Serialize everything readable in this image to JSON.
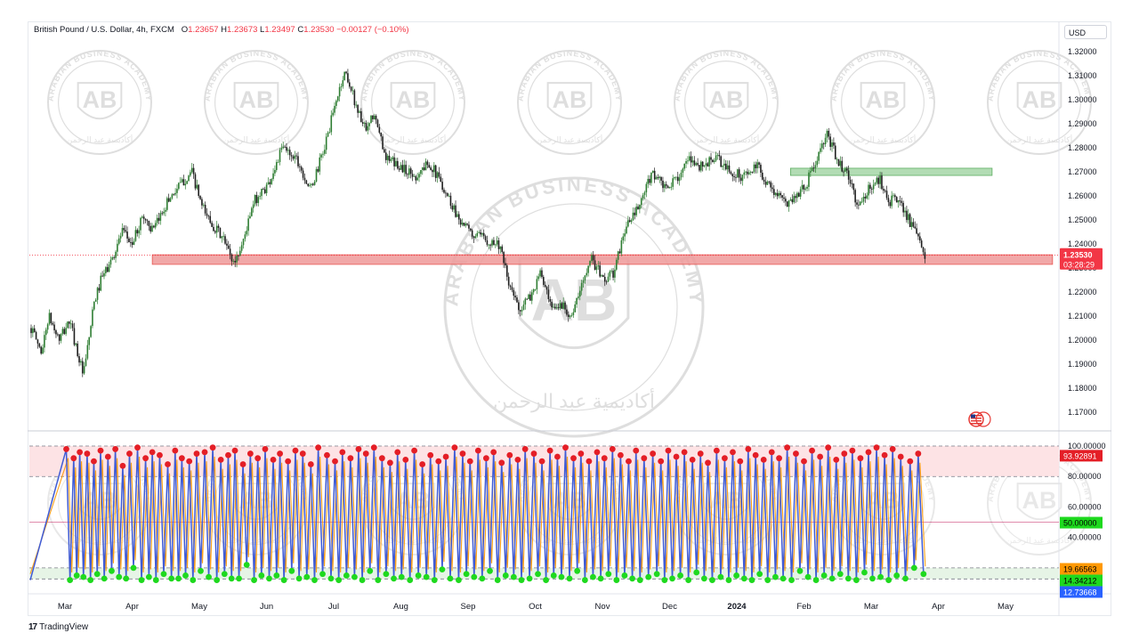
{
  "legend": {
    "symbol": "British Pound / U.S. Dollar, 4h, FXCM",
    "open_label": "O",
    "open": "1.23657",
    "high_label": "H",
    "high": "1.23673",
    "low_label": "L",
    "low": "1.23497",
    "close_label": "C",
    "close": "1.23530",
    "change": "−0.00127 (−0.10%)"
  },
  "currency": "USD",
  "price_badge": {
    "price": "1.23530",
    "countdown": "03:28:29",
    "color": "#f23645"
  },
  "indicator_badges": [
    "93.92891",
    "50.00000",
    "19.66563",
    "14.34212",
    "12.73668"
  ],
  "footer": {
    "logo_mark": "17",
    "logo_text": "TradingView"
  },
  "watermark": {
    "monogram": "AB",
    "arc_text": "ARABIAN BUSINESS ACADEMY",
    "arabic_text": "أكاديمية عبد الرحمن"
  },
  "colors": {
    "bull": "#26a69a",
    "bear": "#1f1f1f",
    "up_candle_body": "#2e7d32",
    "resistance_zone": "#a5d6a7",
    "support_zone": "#ef9a9a",
    "osc_line": "#3f5bd5",
    "osc_signal": "#ff9800",
    "overbought_fill": "#fde3e5",
    "oversold_fill": "#e6f4e6",
    "dot_high": "#e41e26",
    "dot_low": "#1ed91e"
  },
  "chart_data": [
    {
      "type": "candlestick",
      "title": "British Pound / U.S. Dollar, 4h, FXCM",
      "x_ticks": [
        "Mar",
        "Apr",
        "May",
        "Jun",
        "Jul",
        "Aug",
        "Sep",
        "Oct",
        "Nov",
        "Dec",
        "2024",
        "Feb",
        "Mar",
        "Apr",
        "May"
      ],
      "y_ticks": [
        "1.32000",
        "1.31000",
        "1.30000",
        "1.29000",
        "1.28000",
        "1.27000",
        "1.26000",
        "1.25000",
        "1.24000",
        "1.23000",
        "1.22000",
        "1.21000",
        "1.20000",
        "1.19000",
        "1.18000",
        "1.17000"
      ],
      "ylim": [
        1.1655,
        1.3228
      ],
      "close_path": {
        "months": [
          0.0,
          0.15,
          0.25,
          0.4,
          0.55,
          0.75,
          0.9,
          1.0,
          1.15,
          1.3,
          1.45,
          1.6,
          1.75,
          1.9,
          2.0,
          2.15,
          2.3,
          2.45,
          2.6,
          2.75,
          2.9,
          3.0,
          3.2,
          3.4,
          3.6,
          3.8,
          4.0,
          4.2,
          4.4,
          4.5,
          4.65,
          4.8,
          4.9,
          5.1,
          5.3,
          5.5,
          5.7,
          5.9,
          6.1,
          6.3,
          6.5,
          6.7,
          6.85,
          7.0,
          7.15,
          7.3,
          7.45,
          7.6,
          7.75,
          7.9,
          8.0,
          8.2,
          8.35,
          8.5,
          8.7,
          8.9,
          9.1,
          9.3,
          9.45,
          9.6,
          9.8,
          10.0,
          10.2,
          10.4,
          10.6,
          10.8,
          10.95,
          11.1,
          11.25,
          11.4,
          11.55,
          11.7,
          11.85,
          12.0,
          12.15,
          12.3,
          12.45,
          12.6,
          12.7,
          12.8
        ],
        "prices": [
          1.205,
          1.195,
          1.21,
          1.2,
          1.208,
          1.185,
          1.215,
          1.225,
          1.233,
          1.245,
          1.24,
          1.252,
          1.245,
          1.255,
          1.26,
          1.265,
          1.27,
          1.255,
          1.248,
          1.242,
          1.232,
          1.238,
          1.258,
          1.265,
          1.28,
          1.276,
          1.262,
          1.28,
          1.303,
          1.312,
          1.298,
          1.286,
          1.294,
          1.275,
          1.272,
          1.268,
          1.274,
          1.264,
          1.252,
          1.244,
          1.242,
          1.24,
          1.222,
          1.213,
          1.218,
          1.228,
          1.212,
          1.215,
          1.21,
          1.224,
          1.235,
          1.225,
          1.228,
          1.246,
          1.255,
          1.27,
          1.262,
          1.27,
          1.275,
          1.272,
          1.276,
          1.27,
          1.268,
          1.272,
          1.263,
          1.257,
          1.26,
          1.265,
          1.275,
          1.285,
          1.275,
          1.268,
          1.255,
          1.263,
          1.267,
          1.258,
          1.258,
          1.248,
          1.242,
          1.2353
        ]
      },
      "zones": [
        {
          "label": "resistance",
          "from_month": 10.8,
          "to_month": 13.8,
          "low": 1.2685,
          "high": 1.2715
        },
        {
          "label": "support",
          "from_month": 1.3,
          "to_month": 14.7,
          "low": 1.2315,
          "high": 1.2355
        }
      ],
      "last_price": 1.2353
    },
    {
      "type": "line",
      "y_ticks": [
        "100.00000",
        "80.00000",
        "60.00000",
        "40.00000"
      ],
      "ylim": [
        10,
        103
      ],
      "levels": [
        100,
        80,
        50,
        20,
        12.73668
      ],
      "cycles": [
        [
          0.02,
          98,
          12
        ],
        [
          0.13,
          92,
          15
        ],
        [
          0.22,
          96,
          14
        ],
        [
          0.33,
          95,
          12
        ],
        [
          0.43,
          90,
          16
        ],
        [
          0.53,
          97,
          13
        ],
        [
          0.64,
          93,
          18
        ],
        [
          0.75,
          98,
          14
        ],
        [
          0.86,
          87,
          13
        ],
        [
          0.96,
          95,
          20
        ],
        [
          1.08,
          99,
          12
        ],
        [
          1.2,
          92,
          14
        ],
        [
          1.3,
          96,
          12
        ],
        [
          1.41,
          94,
          16
        ],
        [
          1.53,
          88,
          13
        ],
        [
          1.64,
          97,
          13
        ],
        [
          1.74,
          92,
          15
        ],
        [
          1.85,
          90,
          12
        ],
        [
          1.96,
          95,
          18
        ],
        [
          2.08,
          96,
          14
        ],
        [
          2.2,
          99,
          12
        ],
        [
          2.32,
          91,
          16
        ],
        [
          2.43,
          94,
          13
        ],
        [
          2.53,
          97,
          13
        ],
        [
          2.65,
          88,
          22
        ],
        [
          2.76,
          95,
          12
        ],
        [
          2.87,
          92,
          15
        ],
        [
          2.98,
          98,
          13
        ],
        [
          3.1,
          91,
          15
        ],
        [
          3.2,
          95,
          12
        ],
        [
          3.32,
          90,
          18
        ],
        [
          3.43,
          97,
          13
        ],
        [
          3.54,
          95,
          14
        ],
        [
          3.66,
          88,
          12
        ],
        [
          3.77,
          99,
          16
        ],
        [
          3.9,
          94,
          13
        ],
        [
          4.02,
          90,
          12
        ],
        [
          4.13,
          96,
          15
        ],
        [
          4.25,
          92,
          14
        ],
        [
          4.37,
          98,
          12
        ],
        [
          4.48,
          95,
          18
        ],
        [
          4.6,
          99,
          12
        ],
        [
          4.72,
          92,
          16
        ],
        [
          4.84,
          89,
          13
        ],
        [
          4.95,
          96,
          14
        ],
        [
          5.07,
          91,
          12
        ],
        [
          5.2,
          97,
          15
        ],
        [
          5.32,
          88,
          14
        ],
        [
          5.44,
          94,
          12
        ],
        [
          5.56,
          90,
          19
        ],
        [
          5.67,
          93,
          13
        ],
        [
          5.8,
          99,
          12
        ],
        [
          5.92,
          95,
          16
        ],
        [
          6.03,
          90,
          14
        ],
        [
          6.15,
          97,
          13
        ],
        [
          6.27,
          92,
          18
        ],
        [
          6.38,
          96,
          12
        ],
        [
          6.5,
          89,
          15
        ],
        [
          6.62,
          94,
          14
        ],
        [
          6.74,
          91,
          12
        ],
        [
          6.85,
          98,
          13
        ],
        [
          6.98,
          95,
          16
        ],
        [
          7.1,
          90,
          12
        ],
        [
          7.22,
          97,
          15
        ],
        [
          7.33,
          93,
          14
        ],
        [
          7.45,
          99,
          13
        ],
        [
          7.57,
          92,
          18
        ],
        [
          7.68,
          95,
          12
        ],
        [
          7.8,
          90,
          14
        ],
        [
          7.92,
          96,
          13
        ],
        [
          8.03,
          92,
          16
        ],
        [
          8.15,
          98,
          12
        ],
        [
          8.27,
          94,
          15
        ],
        [
          8.39,
          90,
          13
        ],
        [
          8.5,
          97,
          12
        ],
        [
          8.62,
          92,
          14
        ],
        [
          8.75,
          95,
          16
        ],
        [
          8.87,
          90,
          12
        ],
        [
          8.98,
          97,
          13
        ],
        [
          9.1,
          93,
          15
        ],
        [
          9.22,
          96,
          12
        ],
        [
          9.34,
          91,
          17
        ],
        [
          9.46,
          95,
          13
        ],
        [
          9.57,
          89,
          12
        ],
        [
          9.7,
          97,
          14
        ],
        [
          9.82,
          92,
          12
        ],
        [
          9.94,
          96,
          15
        ],
        [
          10.05,
          90,
          13
        ],
        [
          10.17,
          98,
          12
        ],
        [
          10.28,
          94,
          16
        ],
        [
          10.4,
          91,
          12
        ],
        [
          10.52,
          96,
          14
        ],
        [
          10.63,
          92,
          13
        ],
        [
          10.75,
          99,
          12
        ],
        [
          10.88,
          95,
          18
        ],
        [
          11.0,
          90,
          14
        ],
        [
          11.12,
          97,
          12
        ],
        [
          11.24,
          93,
          15
        ],
        [
          11.36,
          99,
          13
        ],
        [
          11.48,
          91,
          16
        ],
        [
          11.6,
          95,
          13
        ],
        [
          11.72,
          97,
          12
        ],
        [
          11.84,
          92,
          17
        ],
        [
          11.96,
          96,
          13
        ],
        [
          12.08,
          99,
          14
        ],
        [
          12.2,
          94,
          12
        ],
        [
          12.32,
          98,
          15
        ],
        [
          12.44,
          93,
          13
        ],
        [
          12.58,
          90,
          20
        ],
        [
          12.7,
          95,
          16
        ]
      ],
      "last_values": [
        19.66563,
        14.34212
      ]
    }
  ]
}
